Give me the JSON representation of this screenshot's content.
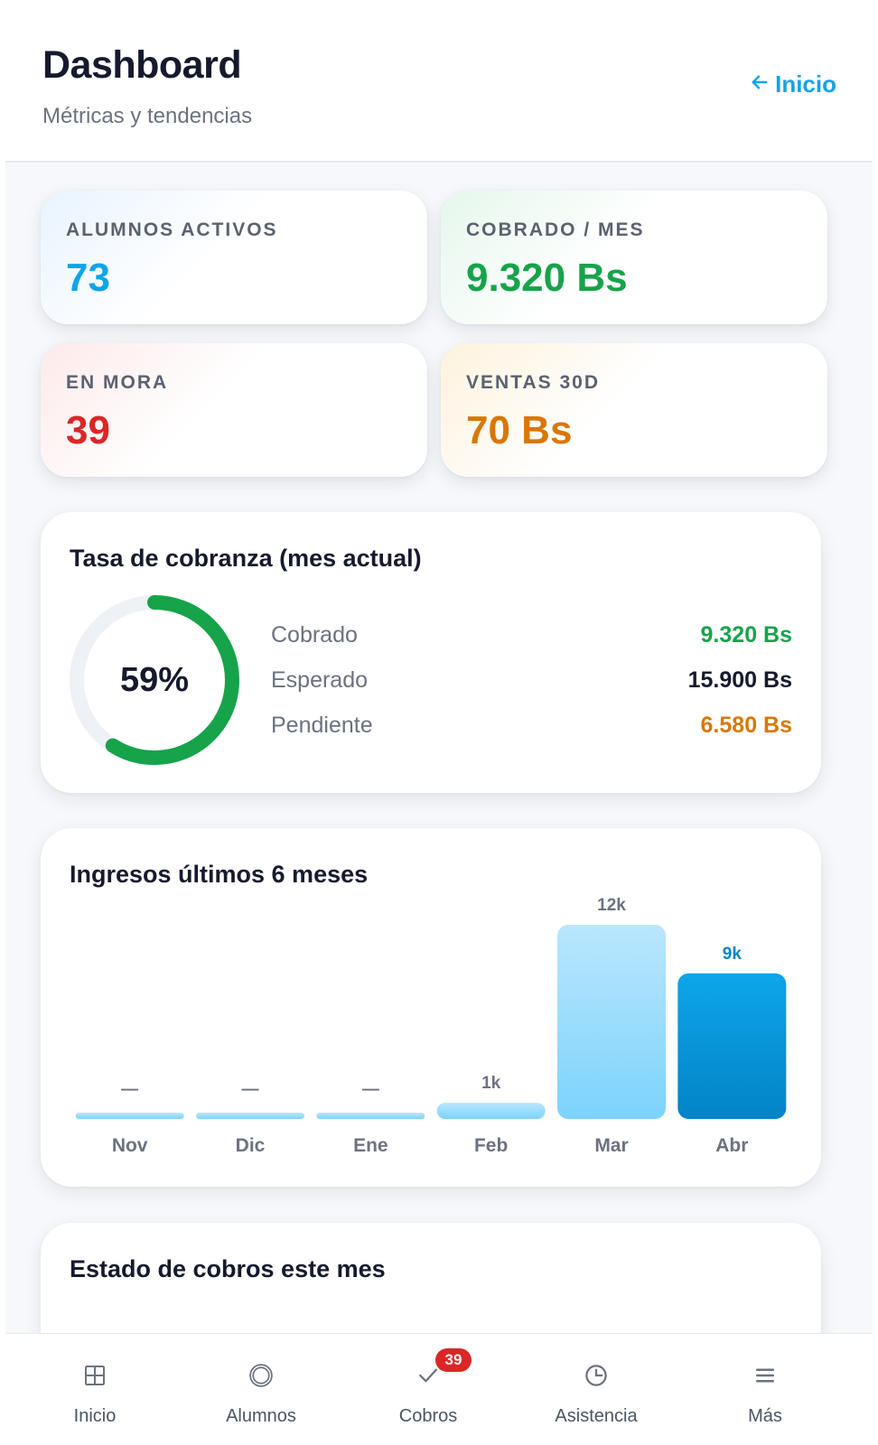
{
  "header": {
    "title": "Dashboard",
    "subtitle": "Métricas y tendencias",
    "back_link": "Inicio"
  },
  "stats": [
    {
      "label": "ALUMNOS ACTIVOS",
      "value": "73",
      "tone": "blue"
    },
    {
      "label": "COBRADO / MES",
      "value": "9.320 Bs",
      "tone": "green"
    },
    {
      "label": "EN MORA",
      "value": "39",
      "tone": "red"
    },
    {
      "label": "VENTAS 30D",
      "value": "70 Bs",
      "tone": "amber"
    }
  ],
  "collection_rate": {
    "title": "Tasa de cobranza (mes actual)",
    "percent_label": "59%",
    "percent": 59,
    "rows": [
      {
        "label": "Cobrado",
        "value": "9.320 Bs",
        "color": "#16a34a"
      },
      {
        "label": "Esperado",
        "value": "15.900 Bs",
        "color": "#161a2e"
      },
      {
        "label": "Pendiente",
        "value": "6.580 Bs",
        "color": "#d97706"
      }
    ]
  },
  "income": {
    "title": "Ingresos últimos 6 meses"
  },
  "chart_data": {
    "type": "bar",
    "categories": [
      "Nov",
      "Dic",
      "Ene",
      "Feb",
      "Mar",
      "Abr"
    ],
    "values": [
      0,
      0,
      0,
      1000,
      12000,
      9000
    ],
    "data_labels": [
      "—",
      "—",
      "—",
      "1k",
      "12k",
      "9k"
    ],
    "highlight_index": 5,
    "ylim": [
      0,
      12000
    ],
    "title": "Ingresos últimos 6 meses",
    "colors": {
      "light": "#bae6fd",
      "light_bottom": "#7dd3fc",
      "accent": "#0ea5e9",
      "accent_bottom": "#0284c7"
    }
  },
  "status_panel": {
    "title": "Estado de cobros este mes"
  },
  "nav": [
    {
      "label": "Inicio",
      "icon": "grid-icon"
    },
    {
      "label": "Alumnos",
      "icon": "circle-icon"
    },
    {
      "label": "Cobros",
      "icon": "check-icon",
      "badge": "39"
    },
    {
      "label": "Asistencia",
      "icon": "clock-icon"
    },
    {
      "label": "Más",
      "icon": "menu-icon"
    }
  ]
}
